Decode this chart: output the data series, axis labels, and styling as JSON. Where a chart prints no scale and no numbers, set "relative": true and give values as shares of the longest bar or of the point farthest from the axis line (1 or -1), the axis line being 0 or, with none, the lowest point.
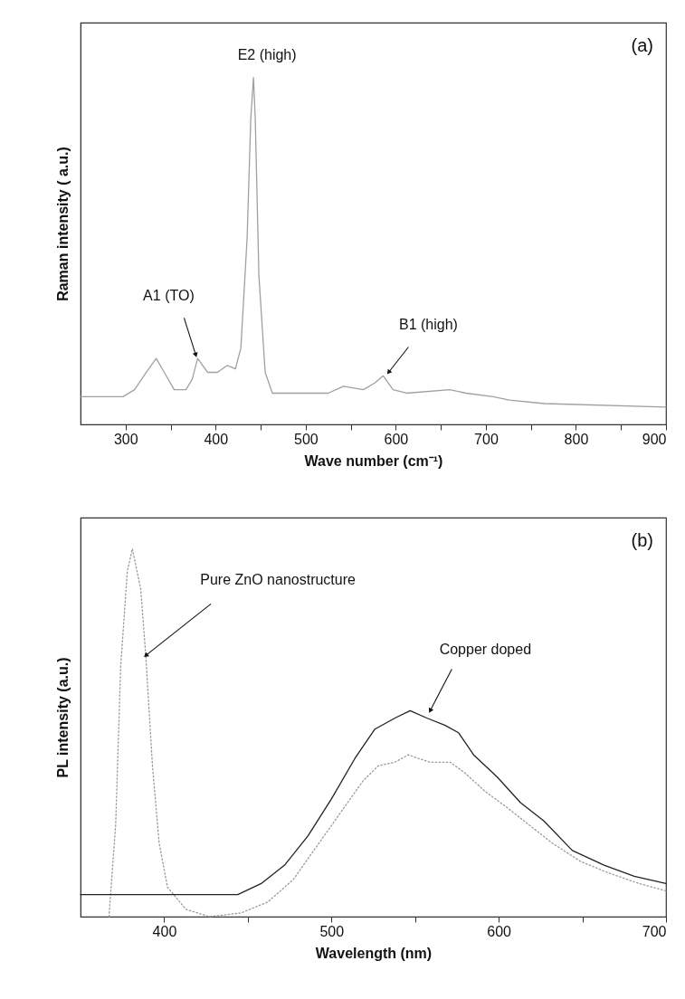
{
  "chart_data": [
    {
      "type": "line",
      "relative": true,
      "xlabel": "Wave number (cm⁻¹)",
      "ylabel": "Raman intensity ( a.u.)",
      "tick_labels": "x",
      "xlim": [
        250,
        900
      ],
      "xticks": [
        300,
        {
          "value": 350,
          "label": null
        },
        400,
        {
          "value": 450,
          "label": null
        },
        500,
        {
          "value": 550,
          "label": null
        },
        600,
        {
          "value": 650,
          "label": null
        },
        700,
        {
          "value": 750,
          "label": null
        },
        800,
        {
          "value": 850,
          "label": null
        },
        900
      ],
      "annotations": [
        "(a)",
        {
          "text": "A1 (TO)",
          "x": 378,
          "y": 0.2
        },
        {
          "text": "E2 (high)",
          "x": 442,
          "y": 1.0
        },
        {
          "text": "B1 (high)",
          "x": 592,
          "y": 0.15
        }
      ],
      "series": [
        {
          "color": "#a0a0a0",
          "x": [
            250,
            297,
            310,
            323,
            334,
            343,
            354,
            367,
            374,
            380,
            391,
            402,
            413,
            422,
            428,
            435,
            439,
            442,
            444,
            448,
            455,
            463,
            503,
            525,
            542,
            564,
            577,
            586,
            597,
            612,
            660,
            678,
            708,
            726,
            765,
            900
          ],
          "values": [
            0.08,
            0.08,
            0.1,
            0.15,
            0.19,
            0.15,
            0.1,
            0.1,
            0.13,
            0.19,
            0.15,
            0.15,
            0.17,
            0.16,
            0.22,
            0.54,
            0.88,
            1.0,
            0.88,
            0.43,
            0.15,
            0.09,
            0.09,
            0.09,
            0.11,
            0.1,
            0.12,
            0.14,
            0.1,
            0.09,
            0.1,
            0.09,
            0.08,
            0.07,
            0.06,
            0.05
          ]
        }
      ]
    },
    {
      "type": "line",
      "relative": true,
      "xlabel": "Wavelength (nm)",
      "ylabel": "PL intensity (a.u.)",
      "tick_labels": "x",
      "xlim": [
        350,
        700
      ],
      "xticks": [
        400,
        {
          "value": 450,
          "label": null
        },
        500,
        {
          "value": 550,
          "label": null
        },
        600,
        {
          "value": 650,
          "label": null
        },
        700
      ],
      "annotations": [
        "(b)",
        {
          "text": "Pure ZnO nanostructure",
          "x": 389,
          "y": 0.71
        },
        {
          "text": "Copper doped",
          "x": 559,
          "y": 0.56
        }
      ],
      "series": [
        {
          "color": "#9a9a9a",
          "line_style": "dotted",
          "x": [
            367,
            371,
            374,
            378,
            381,
            386,
            389,
            393,
            397,
            402,
            413,
            427,
            446,
            462,
            477,
            491,
            505,
            519,
            528,
            538,
            546,
            552,
            559,
            571,
            580,
            592,
            604,
            618,
            632,
            649,
            665,
            684,
            700
          ],
          "values": [
            0,
            0.25,
            0.68,
            0.94,
            1.0,
            0.89,
            0.71,
            0.41,
            0.2,
            0.08,
            0.02,
            0.0,
            0.01,
            0.04,
            0.1,
            0.19,
            0.28,
            0.37,
            0.41,
            0.42,
            0.44,
            0.43,
            0.42,
            0.42,
            0.39,
            0.34,
            0.3,
            0.25,
            0.2,
            0.15,
            0.12,
            0.09,
            0.07
          ]
        },
        {
          "color": "#222222",
          "x": [
            350,
            429,
            444,
            458,
            472,
            486,
            500,
            514,
            526,
            538,
            547,
            557,
            568,
            576,
            585,
            599,
            613,
            627,
            644,
            663,
            681,
            700
          ],
          "values": [
            0.06,
            0.06,
            0.06,
            0.09,
            0.14,
            0.22,
            0.32,
            0.43,
            0.51,
            0.54,
            0.56,
            0.54,
            0.52,
            0.5,
            0.44,
            0.38,
            0.31,
            0.26,
            0.18,
            0.14,
            0.11,
            0.09
          ]
        }
      ]
    }
  ]
}
